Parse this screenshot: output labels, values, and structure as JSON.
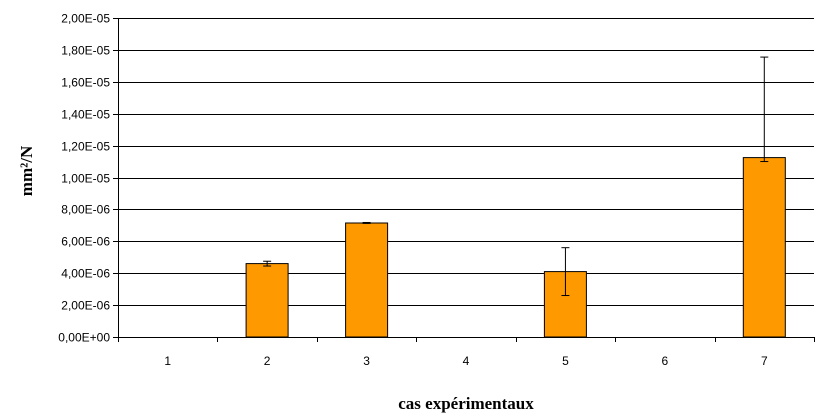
{
  "chart_data": {
    "type": "bar",
    "title": "",
    "xlabel": "cas expérimentaux",
    "ylabel": "mm²/N",
    "categories": [
      "1",
      "2",
      "3",
      "4",
      "5",
      "6",
      "7"
    ],
    "values": [
      0,
      4.6e-06,
      7.15e-06,
      0,
      4.1e-06,
      0,
      1.125e-05
    ],
    "errors": [
      null,
      [
        4.45e-06,
        4.75e-06
      ],
      [
        7.12e-06,
        7.18e-06
      ],
      null,
      [
        2.6e-06,
        5.6e-06
      ],
      null,
      [
        1.1e-05,
        1.755e-05
      ]
    ],
    "ylim": [
      0,
      2e-05
    ],
    "yticks": [
      {
        "value": 0,
        "label": "0,00E+00"
      },
      {
        "value": 2e-06,
        "label": "2,00E-06"
      },
      {
        "value": 4e-06,
        "label": "4,00E-06"
      },
      {
        "value": 6e-06,
        "label": "6,00E-06"
      },
      {
        "value": 8e-06,
        "label": "8,00E-06"
      },
      {
        "value": 1e-05,
        "label": "1,00E-05"
      },
      {
        "value": 1.2e-05,
        "label": "1,20E-05"
      },
      {
        "value": 1.4e-05,
        "label": "1,40E-05"
      },
      {
        "value": 1.6e-05,
        "label": "1,60E-05"
      },
      {
        "value": 1.8e-05,
        "label": "1,80E-05"
      },
      {
        "value": 2e-05,
        "label": "2,00E-05"
      }
    ],
    "grid": true,
    "legend": "none",
    "colors": {
      "bar": "#FF9900",
      "bar_edge": "#000000",
      "grid": "#000000",
      "error_bar": "#000000"
    }
  }
}
